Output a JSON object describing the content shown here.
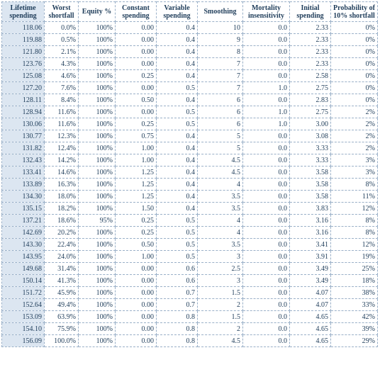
{
  "columns": [
    {
      "label": "Lifetime spending"
    },
    {
      "label": "Worst shortfall"
    },
    {
      "label": "Equity %"
    },
    {
      "label": "Constant spending"
    },
    {
      "label": "Variable spending"
    },
    {
      "label": "Smoothing"
    },
    {
      "label": "Mortality insensitivity"
    },
    {
      "label": "Initial spending"
    },
    {
      "label": "Probability of 10% shortfall"
    }
  ],
  "rows": [
    [
      "118.06",
      "0.0%",
      "100%",
      "0.00",
      "0.4",
      "10",
      "0.0",
      "2.33",
      "0%"
    ],
    [
      "119.88",
      "0.5%",
      "100%",
      "0.00",
      "0.4",
      "9",
      "0.0",
      "2.33",
      "0%"
    ],
    [
      "121.80",
      "2.1%",
      "100%",
      "0.00",
      "0.4",
      "8",
      "0.0",
      "2.33",
      "0%"
    ],
    [
      "123.76",
      "4.3%",
      "100%",
      "0.00",
      "0.4",
      "7",
      "0.0",
      "2.33",
      "0%"
    ],
    [
      "125.08",
      "4.6%",
      "100%",
      "0.25",
      "0.4",
      "7",
      "0.0",
      "2.58",
      "0%"
    ],
    [
      "127.20",
      "7.6%",
      "100%",
      "0.00",
      "0.5",
      "7",
      "1.0",
      "2.75",
      "0%"
    ],
    [
      "128.11",
      "8.4%",
      "100%",
      "0.50",
      "0.4",
      "6",
      "0.0",
      "2.83",
      "0%"
    ],
    [
      "128.94",
      "11.6%",
      "100%",
      "0.00",
      "0.5",
      "6",
      "1.0",
      "2.75",
      "2%"
    ],
    [
      "130.06",
      "11.6%",
      "100%",
      "0.25",
      "0.5",
      "6",
      "1.0",
      "3.00",
      "2%"
    ],
    [
      "130.77",
      "12.3%",
      "100%",
      "0.75",
      "0.4",
      "5",
      "0.0",
      "3.08",
      "2%"
    ],
    [
      "131.82",
      "12.4%",
      "100%",
      "1.00",
      "0.4",
      "5",
      "0.0",
      "3.33",
      "2%"
    ],
    [
      "132.43",
      "14.2%",
      "100%",
      "1.00",
      "0.4",
      "4.5",
      "0.0",
      "3.33",
      "3%"
    ],
    [
      "133.41",
      "14.6%",
      "100%",
      "1.25",
      "0.4",
      "4.5",
      "0.0",
      "3.58",
      "3%"
    ],
    [
      "133.89",
      "16.3%",
      "100%",
      "1.25",
      "0.4",
      "4",
      "0.0",
      "3.58",
      "8%"
    ],
    [
      "134.30",
      "18.0%",
      "100%",
      "1.25",
      "0.4",
      "3.5",
      "0.0",
      "3.58",
      "11%"
    ],
    [
      "135.15",
      "18.2%",
      "100%",
      "1.50",
      "0.4",
      "3.5",
      "0.0",
      "3.83",
      "12%"
    ],
    [
      "137.21",
      "18.6%",
      "95%",
      "0.25",
      "0.5",
      "4",
      "0.0",
      "3.16",
      "8%"
    ],
    [
      "142.69",
      "20.2%",
      "100%",
      "0.25",
      "0.5",
      "4",
      "0.0",
      "3.16",
      "8%"
    ],
    [
      "143.30",
      "22.4%",
      "100%",
      "0.50",
      "0.5",
      "3.5",
      "0.0",
      "3.41",
      "12%"
    ],
    [
      "143.95",
      "24.0%",
      "100%",
      "1.00",
      "0.5",
      "3",
      "0.0",
      "3.91",
      "19%"
    ],
    [
      "149.68",
      "31.4%",
      "100%",
      "0.00",
      "0.6",
      "2.5",
      "0.0",
      "3.49",
      "25%"
    ],
    [
      "150.14",
      "41.3%",
      "100%",
      "0.00",
      "0.6",
      "3",
      "0.0",
      "3.49",
      "18%"
    ],
    [
      "151.72",
      "45.9%",
      "100%",
      "0.00",
      "0.7",
      "1.5",
      "0.0",
      "4.07",
      "38%"
    ],
    [
      "152.64",
      "49.4%",
      "100%",
      "0.00",
      "0.7",
      "2",
      "0.0",
      "4.07",
      "33%"
    ],
    [
      "153.09",
      "63.9%",
      "100%",
      "0.00",
      "0.8",
      "1.5",
      "0.0",
      "4.65",
      "42%"
    ],
    [
      "154.10",
      "75.9%",
      "100%",
      "0.00",
      "0.8",
      "2",
      "0.0",
      "4.65",
      "39%"
    ],
    [
      "156.09",
      "100.0%",
      "100%",
      "0.00",
      "0.8",
      "4.5",
      "0.0",
      "4.65",
      "29%"
    ]
  ]
}
